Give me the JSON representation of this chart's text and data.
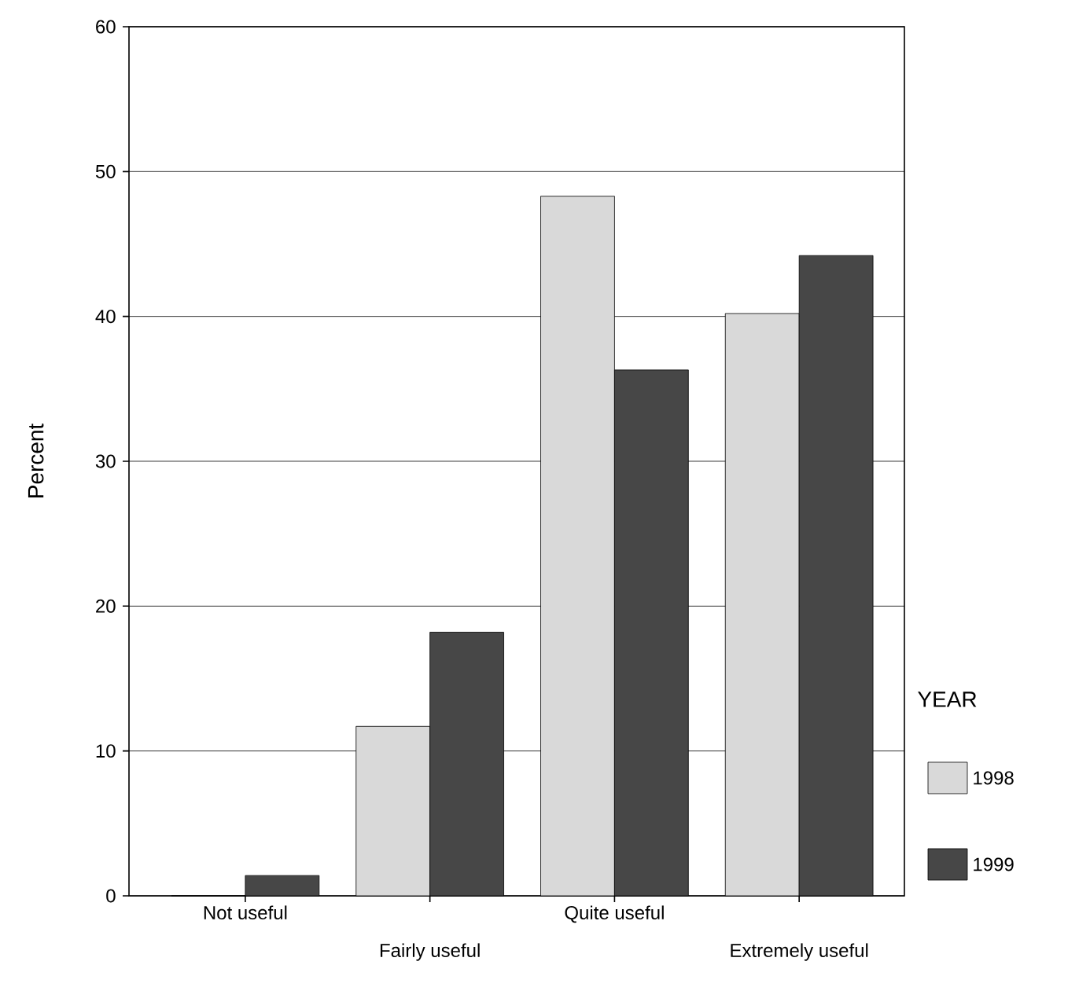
{
  "chart_data": {
    "type": "bar",
    "ylabel": "Percent",
    "legend_title": "YEAR",
    "categories": [
      "Not useful",
      "Fairly useful",
      "Quite useful",
      "Extremely useful"
    ],
    "series": [
      {
        "name": "1998",
        "color": "#d9d9d9",
        "values": [
          0,
          11.7,
          48.3,
          40.2
        ]
      },
      {
        "name": "1999",
        "color": "#474747",
        "values": [
          1.4,
          18.2,
          36.3,
          44.2
        ]
      }
    ],
    "ylim": [
      0,
      60
    ],
    "yticks": [
      0,
      10,
      20,
      30,
      40,
      50,
      60
    ],
    "grid": "y",
    "legend": "right"
  }
}
